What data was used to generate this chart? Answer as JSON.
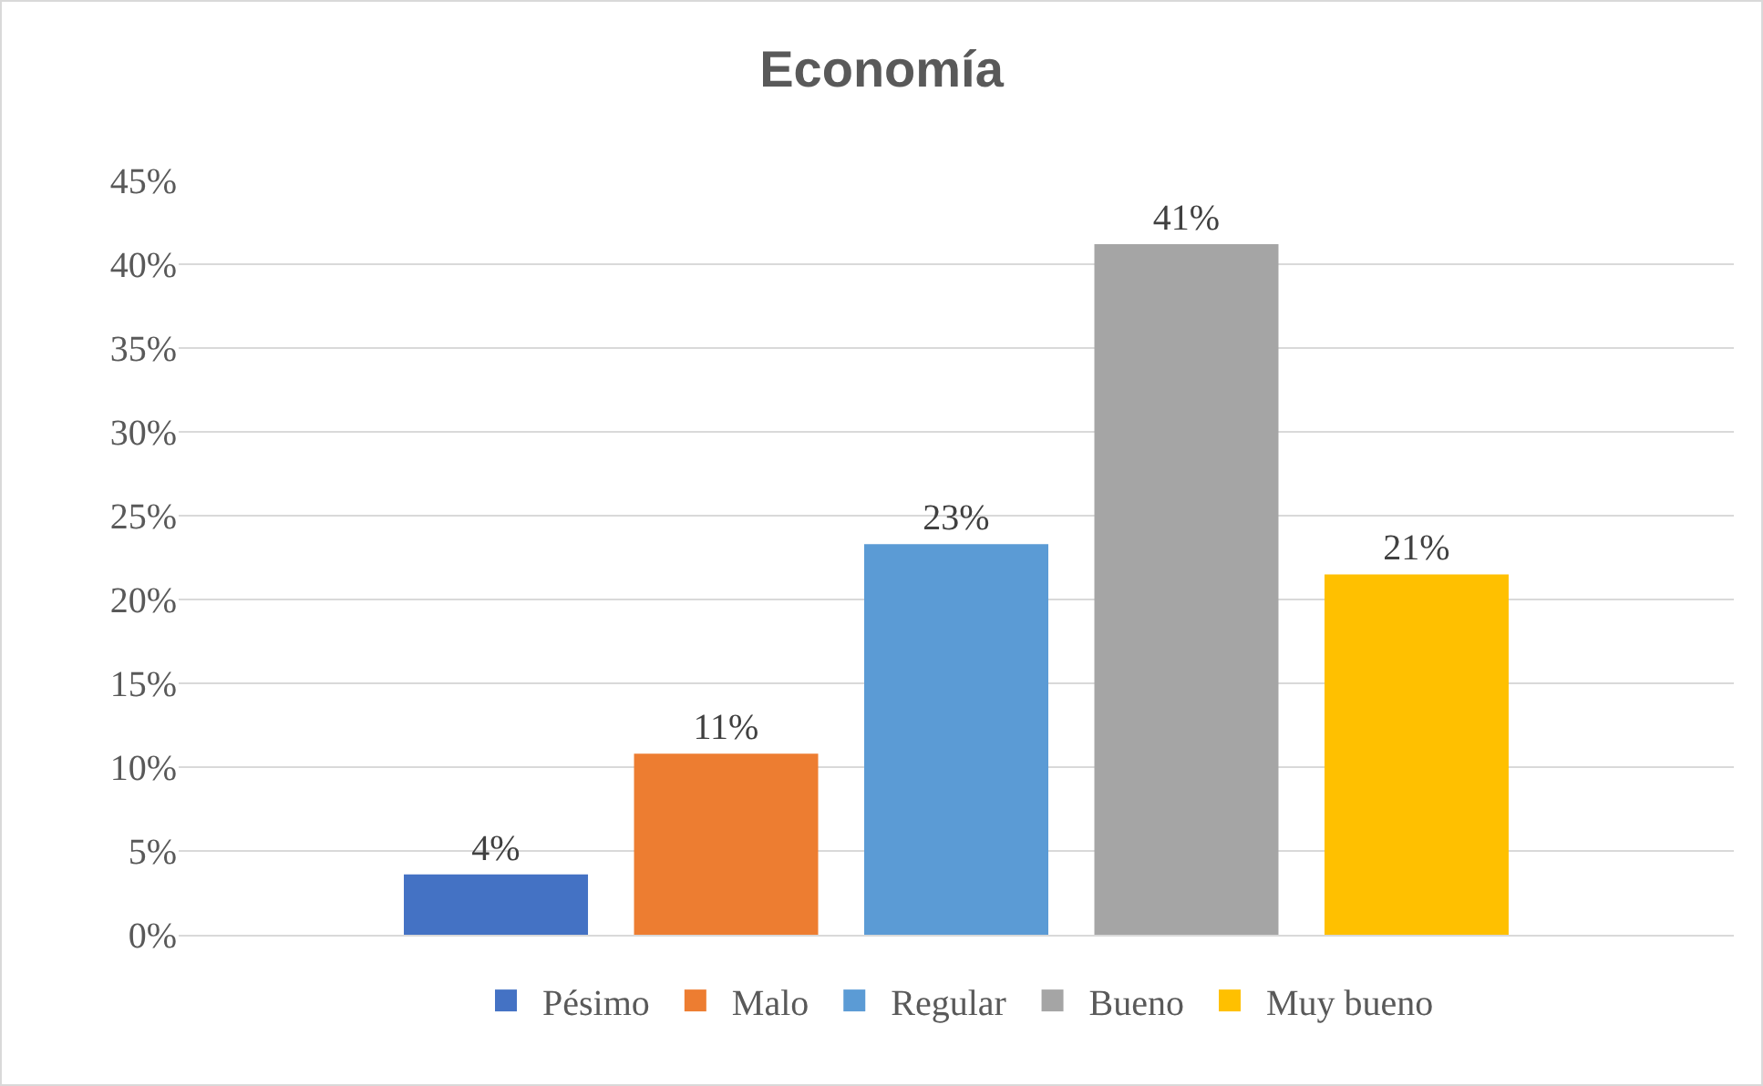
{
  "chart_data": {
    "type": "bar",
    "title": "Economía",
    "categories": [
      null
    ],
    "series": [
      {
        "name": "Pésimo",
        "color": "#4472c4",
        "values": [
          3.6
        ],
        "value_labels": [
          "4%"
        ]
      },
      {
        "name": "Malo",
        "color": "#ed7d31",
        "values": [
          10.8
        ],
        "value_labels": [
          "11%"
        ]
      },
      {
        "name": "Regular",
        "color": "#5b9bd5",
        "values": [
          23.3
        ],
        "value_labels": [
          "23%"
        ]
      },
      {
        "name": "Bueno",
        "color": "#a5a5a5",
        "values": [
          41.2
        ],
        "value_labels": [
          "41%"
        ]
      },
      {
        "name": "Muy bueno",
        "color": "#ffc000",
        "values": [
          21.5
        ],
        "value_labels": [
          "21%"
        ]
      }
    ],
    "ylim": [
      0,
      45
    ],
    "yticks": [
      {
        "value": 0,
        "label": "0%"
      },
      {
        "value": 5,
        "label": "5%"
      },
      {
        "value": 10,
        "label": "10%"
      },
      {
        "value": 15,
        "label": "15%"
      },
      {
        "value": 20,
        "label": "20%"
      },
      {
        "value": 25,
        "label": "25%"
      },
      {
        "value": 30,
        "label": "30%"
      },
      {
        "value": 35,
        "label": "35%"
      },
      {
        "value": 40,
        "label": "40%"
      },
      {
        "value": 45,
        "label": "45%"
      }
    ],
    "grid": "y",
    "legend": "bottom"
  }
}
